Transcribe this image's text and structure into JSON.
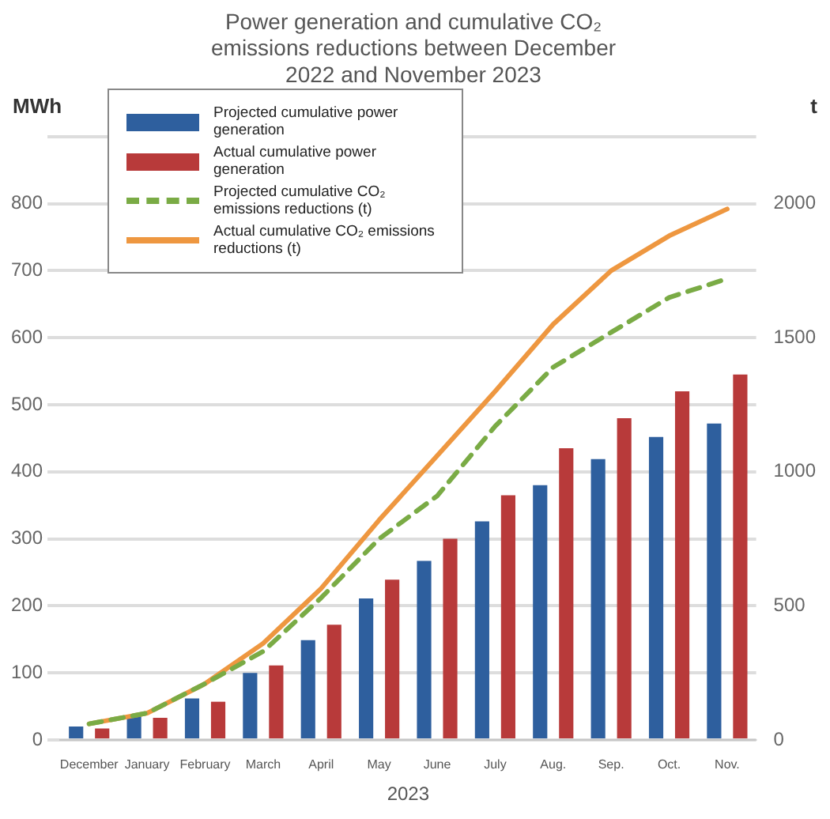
{
  "chart_data": {
    "type": "bar",
    "title": "Power generation and cumulative CO₂ emissions reductions between December 2022 and November 2023",
    "categories": [
      "December",
      "January",
      "February",
      "March",
      "April",
      "May",
      "June",
      "July",
      "Aug.",
      "Sep.",
      "Oct.",
      "Nov."
    ],
    "xlabel": "2023",
    "ylabel": "MWh",
    "y2label": "t",
    "series": [
      {
        "name": "Projected cumulative power generation",
        "color": "#2e5f9e",
        "values": [
          20,
          36,
          62,
          100,
          149,
          211,
          267,
          326,
          380,
          419,
          452,
          472
        ]
      },
      {
        "name": "Actual cumulative power generation",
        "color": "#b83a3a",
        "values": [
          17,
          33,
          57,
          111,
          172,
          239,
          300,
          365,
          435,
          480,
          520,
          545
        ]
      },
      {
        "name": "Projected cumulative CO₂ emissions reductions (t)",
        "type": "line",
        "axis": "y2",
        "line_style": "dashed",
        "color": "#7aab45",
        "values": [
          60,
          100,
          210,
          330,
          530,
          750,
          910,
          1170,
          1390,
          1520,
          1650,
          1720
        ]
      },
      {
        "name": "Actual cumulative CO₂ emissions reductions (t)",
        "type": "line",
        "axis": "y2",
        "line_style": "solid",
        "color": "#ee9740",
        "values": [
          60,
          100,
          210,
          360,
          565,
          820,
          1060,
          1300,
          1550,
          1750,
          1880,
          1980
        ]
      }
    ],
    "ylim": [
      0,
      900
    ],
    "yticks": [
      0,
      100,
      200,
      300,
      400,
      500,
      600,
      700,
      800,
      {
        "value": 900,
        "label": null
      }
    ],
    "y2lim": [
      0,
      2250
    ],
    "y2ticks": [
      0,
      500,
      1000,
      1500,
      2000
    ],
    "grid": "y",
    "legend": "top left",
    "marker": "none"
  }
}
